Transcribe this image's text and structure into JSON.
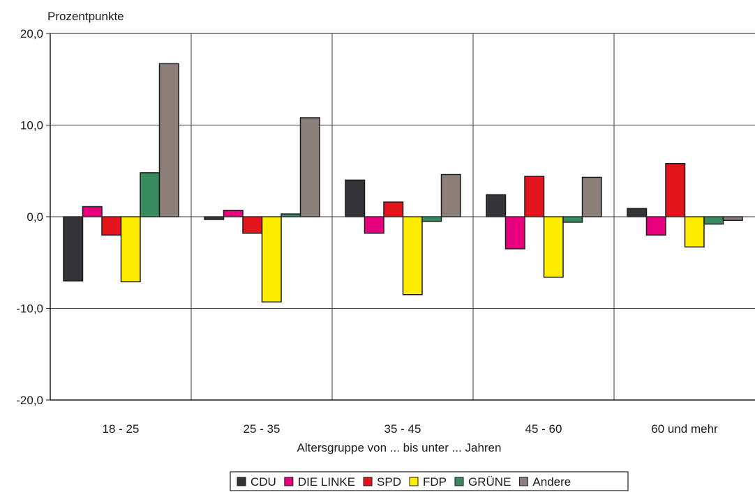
{
  "chart_data": {
    "type": "bar",
    "ylabel": "Prozentpunkte",
    "xlabel": "Altersgruppe von ... bis unter ... Jahren",
    "ylim": [
      -20,
      20
    ],
    "yticks": [
      20,
      10,
      0,
      -10,
      -20
    ],
    "ytick_labels": [
      "20,0",
      "10,0",
      "0,0",
      "-10,0",
      "-20,0"
    ],
    "grid": true,
    "legend_position": "bottom-center",
    "categories": [
      "18 - 25",
      "25 - 35",
      "35 - 45",
      "45 - 60",
      "60 und mehr"
    ],
    "series": [
      {
        "name": "CDU",
        "color": "#333338",
        "values": [
          -7.0,
          -0.3,
          4.0,
          2.4,
          0.9
        ]
      },
      {
        "name": "DIE LINKE",
        "color": "#e6007e",
        "values": [
          1.1,
          0.7,
          -1.8,
          -3.5,
          -2.0
        ]
      },
      {
        "name": "SPD",
        "color": "#e3141c",
        "values": [
          -2.0,
          -1.8,
          1.6,
          4.4,
          5.8
        ]
      },
      {
        "name": "FDP",
        "color": "#ffed00",
        "values": [
          -7.1,
          -9.3,
          -8.5,
          -6.6,
          -3.3
        ]
      },
      {
        "name": "GRÜNE",
        "color": "#3a8a5f",
        "values": [
          4.8,
          0.3,
          -0.5,
          -0.6,
          -0.8
        ]
      },
      {
        "name": "Andere",
        "color": "#8c7f7a",
        "values": [
          16.7,
          10.8,
          4.6,
          4.3,
          -0.4
        ]
      }
    ]
  }
}
